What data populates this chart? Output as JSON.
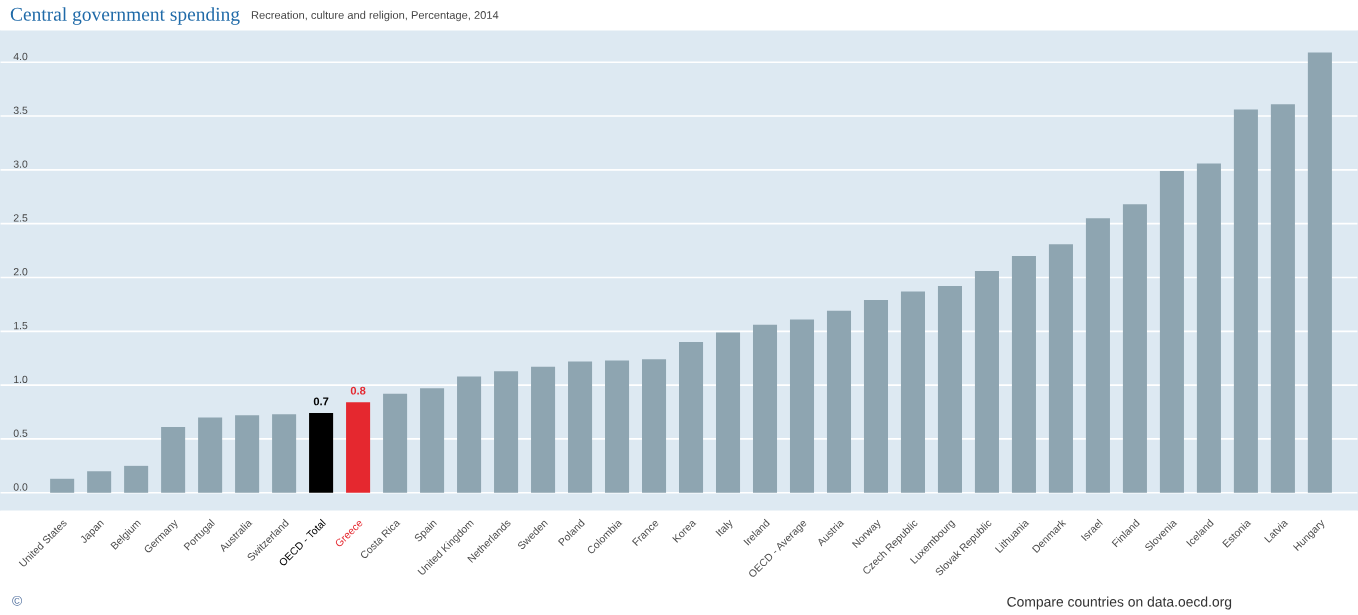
{
  "chart_data": {
    "type": "bar",
    "title": "Central government spending",
    "subtitle": "Recreation, culture and religion, Percentage, 2014",
    "categories": [
      "United States",
      "Japan",
      "Belgium",
      "Germany",
      "Portugal",
      "Australia",
      "Switzerland",
      "OECD - Total",
      "Greece",
      "Costa Rica",
      "Spain",
      "United Kingdom",
      "Netherlands",
      "Sweden",
      "Poland",
      "Colombia",
      "France",
      "Korea",
      "Italy",
      "Ireland",
      "OECD - Average",
      "Austria",
      "Norway",
      "Czech Republic",
      "Luxembourg",
      "Slovak Republic",
      "Lithuania",
      "Denmark",
      "Israel",
      "Finland",
      "Slovenia",
      "Iceland",
      "Estonia",
      "Latvia",
      "Hungary"
    ],
    "values": [
      0.13,
      0.2,
      0.25,
      0.61,
      0.7,
      0.72,
      0.73,
      0.74,
      0.84,
      0.92,
      0.97,
      1.08,
      1.13,
      1.17,
      1.22,
      1.23,
      1.24,
      1.4,
      1.49,
      1.56,
      1.61,
      1.69,
      1.79,
      1.87,
      1.92,
      2.06,
      2.2,
      2.31,
      2.55,
      2.68,
      2.99,
      3.06,
      3.56,
      3.61,
      4.09
    ],
    "color": "#8ea5b1",
    "colors": [
      "#8ea5b1",
      "#8ea5b1",
      "#8ea5b1",
      "#8ea5b1",
      "#8ea5b1",
      "#8ea5b1",
      "#8ea5b1",
      "#000000",
      "#e5282f",
      "#8ea5b1",
      "#8ea5b1",
      "#8ea5b1",
      "#8ea5b1",
      "#8ea5b1",
      "#8ea5b1",
      "#8ea5b1",
      "#8ea5b1",
      "#8ea5b1",
      "#8ea5b1",
      "#8ea5b1",
      "#8ea5b1",
      "#8ea5b1",
      "#8ea5b1",
      "#8ea5b1",
      "#8ea5b1",
      "#8ea5b1",
      "#8ea5b1",
      "#8ea5b1",
      "#8ea5b1",
      "#8ea5b1",
      "#8ea5b1",
      "#8ea5b1",
      "#8ea5b1",
      "#8ea5b1",
      "#8ea5b1"
    ],
    "value_labels": [
      null,
      null,
      null,
      null,
      null,
      null,
      null,
      "0.7",
      "0.8",
      null,
      null,
      null,
      null,
      null,
      null,
      null,
      null,
      null,
      null,
      null,
      null,
      null,
      null,
      null,
      null,
      null,
      null,
      null,
      null,
      null,
      null,
      null,
      null,
      null,
      null
    ],
    "ylim": [
      -0.16,
      4.29
    ],
    "yticks": [
      {
        "value": 0,
        "label": "0.0"
      },
      {
        "value": 0.5,
        "label": "0.5"
      },
      {
        "value": 1,
        "label": "1.0"
      },
      {
        "value": 1.5,
        "label": "1.5"
      },
      {
        "value": 2,
        "label": "2.0"
      },
      {
        "value": 2.5,
        "label": "2.5"
      },
      {
        "value": 3,
        "label": "3.0"
      },
      {
        "value": 3.5,
        "label": "3.5"
      },
      {
        "value": 4,
        "label": "4.0"
      }
    ],
    "grid": "y",
    "annotations": [
      "©",
      "Compare countries on data.oecd.org"
    ]
  }
}
